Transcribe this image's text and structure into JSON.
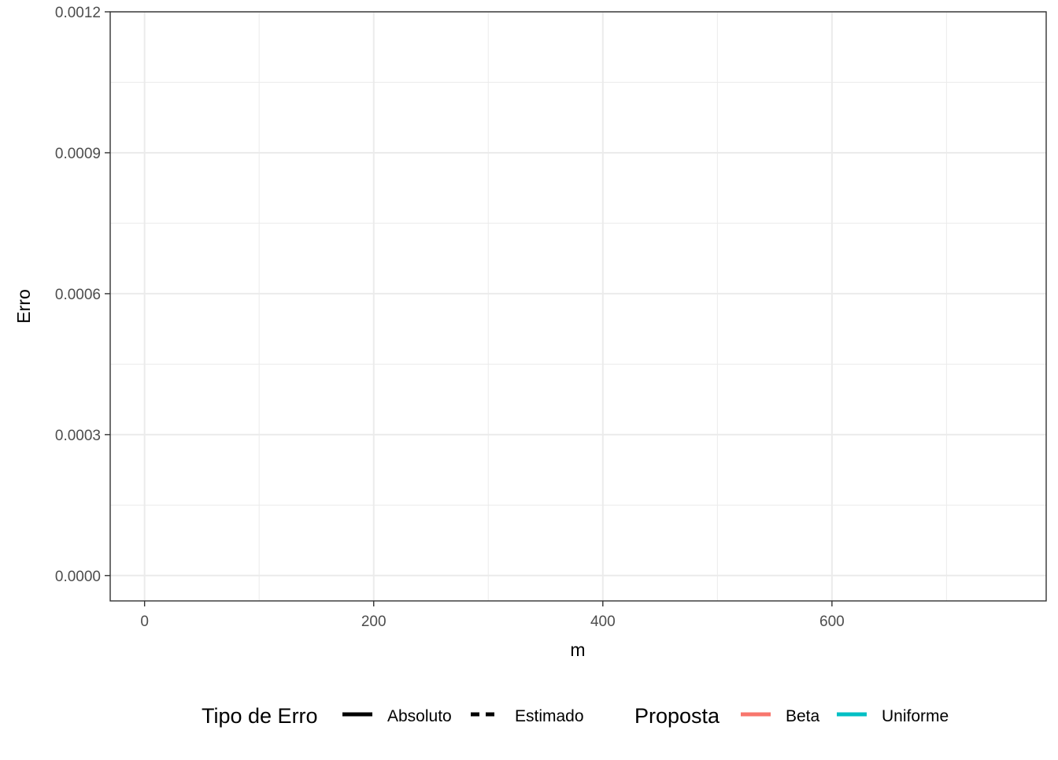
{
  "chart_data": {
    "type": "line",
    "title": "",
    "xlabel": "m",
    "ylabel": "Erro",
    "xlim": [
      -30,
      787
    ],
    "ylim": [
      -5.4e-05,
      0.0012
    ],
    "x_ticks": [
      0,
      200,
      400,
      600
    ],
    "x_tick_labels": [
      "0",
      "200",
      "400",
      "600"
    ],
    "x_minor_ticks": [
      100,
      300,
      500,
      700
    ],
    "y_ticks": [
      0.0,
      0.0003,
      0.0006,
      0.0009,
      0.0012
    ],
    "y_tick_labels": [
      "0.0000",
      "0.0003",
      "0.0006",
      "0.0009",
      "0.0012"
    ],
    "y_minor_ticks": [
      0.00015,
      0.00045,
      0.00075,
      0.00105
    ],
    "grid": true,
    "series": [],
    "legend": {
      "position": "bottom",
      "groups": [
        {
          "title": "Tipo de Erro",
          "items": [
            {
              "label": "Absoluto",
              "line_style": "solid",
              "color": "#000000"
            },
            {
              "label": "Estimado",
              "line_style": "dashed",
              "color": "#000000"
            }
          ]
        },
        {
          "title": "Proposta",
          "items": [
            {
              "label": "Beta",
              "line_style": "solid",
              "color": "#F8766D"
            },
            {
              "label": "Uniforme",
              "line_style": "solid",
              "color": "#00BFC4"
            }
          ]
        }
      ]
    }
  }
}
